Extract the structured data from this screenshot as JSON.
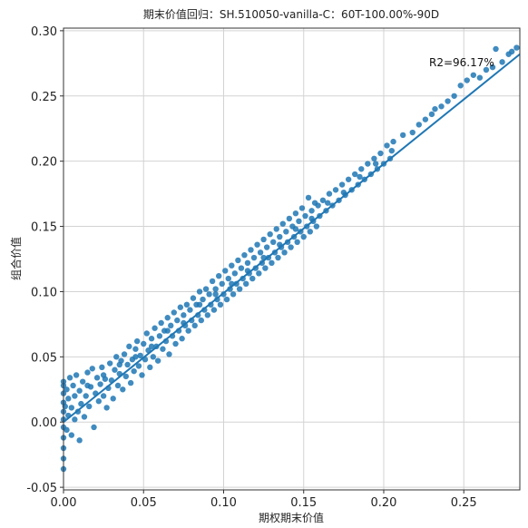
{
  "chart_data": {
    "type": "scatter",
    "title": "期末价值回归：SH.510050-vanilla-C：60T-100.00%-90D",
    "xlabel": "期权期末价值",
    "ylabel": "组合价值",
    "xlim": [
      0.0,
      0.285
    ],
    "ylim": [
      -0.052,
      0.302
    ],
    "x_ticks": [
      "0.00",
      "0.05",
      "0.10",
      "0.15",
      "0.20",
      "0.25"
    ],
    "x_tick_values": [
      0.0,
      0.05,
      0.1,
      0.15,
      0.2,
      0.25
    ],
    "y_ticks": [
      "-0.05",
      "0.00",
      "0.05",
      "0.10",
      "0.15",
      "0.20",
      "0.25",
      "0.30"
    ],
    "y_tick_values": [
      -0.05,
      0.0,
      0.05,
      0.1,
      0.15,
      0.2,
      0.25,
      0.3
    ],
    "grid": true,
    "point_color": "#1f77b4",
    "line_color": "#1f77b4",
    "annotation": "R2=96.17%",
    "regression_line": {
      "x": [
        0.0,
        0.285
      ],
      "y": [
        0.0,
        0.282
      ]
    },
    "points": [
      [
        0.0,
        -0.036
      ],
      [
        0.0,
        -0.028
      ],
      [
        0.0,
        -0.02
      ],
      [
        0.0,
        -0.012
      ],
      [
        0.0,
        -0.004
      ],
      [
        0.0,
        0.002
      ],
      [
        0.0,
        0.008
      ],
      [
        0.0,
        0.015
      ],
      [
        0.0,
        0.022
      ],
      [
        0.0,
        0.028
      ],
      [
        0.0,
        0.031
      ],
      [
        0.001,
        0.012
      ],
      [
        0.002,
        -0.006
      ],
      [
        0.002,
        0.025
      ],
      [
        0.003,
        0.005
      ],
      [
        0.003,
        0.018
      ],
      [
        0.004,
        0.034
      ],
      [
        0.005,
        -0.01
      ],
      [
        0.005,
        0.011
      ],
      [
        0.006,
        0.028
      ],
      [
        0.007,
        0.002
      ],
      [
        0.007,
        0.02
      ],
      [
        0.008,
        0.036
      ],
      [
        0.009,
        0.008
      ],
      [
        0.01,
        -0.014
      ],
      [
        0.01,
        0.024
      ],
      [
        0.011,
        0.014
      ],
      [
        0.012,
        0.031
      ],
      [
        0.013,
        0.004
      ],
      [
        0.014,
        0.02
      ],
      [
        0.015,
        0.038
      ],
      [
        0.016,
        0.012
      ],
      [
        0.017,
        0.027
      ],
      [
        0.018,
        0.041
      ],
      [
        0.019,
        -0.004
      ],
      [
        0.02,
        0.022
      ],
      [
        0.021,
        0.034
      ],
      [
        0.022,
        0.016
      ],
      [
        0.023,
        0.029
      ],
      [
        0.024,
        0.042
      ],
      [
        0.025,
        0.02
      ],
      [
        0.026,
        0.033
      ],
      [
        0.027,
        0.011
      ],
      [
        0.028,
        0.026
      ],
      [
        0.029,
        0.045
      ],
      [
        0.03,
        0.032
      ],
      [
        0.031,
        0.018
      ],
      [
        0.032,
        0.04
      ],
      [
        0.033,
        0.05
      ],
      [
        0.034,
        0.028
      ],
      [
        0.035,
        0.037
      ],
      [
        0.036,
        0.047
      ],
      [
        0.037,
        0.025
      ],
      [
        0.038,
        0.052
      ],
      [
        0.039,
        0.035
      ],
      [
        0.04,
        0.044
      ],
      [
        0.041,
        0.058
      ],
      [
        0.042,
        0.03
      ],
      [
        0.043,
        0.048
      ],
      [
        0.044,
        0.039
      ],
      [
        0.045,
        0.056
      ],
      [
        0.046,
        0.062
      ],
      [
        0.047,
        0.043
      ],
      [
        0.048,
        0.051
      ],
      [
        0.049,
        0.036
      ],
      [
        0.05,
        0.06
      ],
      [
        0.051,
        0.048
      ],
      [
        0.052,
        0.068
      ],
      [
        0.053,
        0.055
      ],
      [
        0.054,
        0.042
      ],
      [
        0.055,
        0.064
      ],
      [
        0.056,
        0.05
      ],
      [
        0.057,
        0.072
      ],
      [
        0.058,
        0.058
      ],
      [
        0.059,
        0.047
      ],
      [
        0.06,
        0.066
      ],
      [
        0.061,
        0.076
      ],
      [
        0.062,
        0.056
      ],
      [
        0.063,
        0.07
      ],
      [
        0.064,
        0.062
      ],
      [
        0.065,
        0.08
      ],
      [
        0.066,
        0.052
      ],
      [
        0.067,
        0.074
      ],
      [
        0.068,
        0.066
      ],
      [
        0.069,
        0.084
      ],
      [
        0.07,
        0.06
      ],
      [
        0.071,
        0.078
      ],
      [
        0.072,
        0.07
      ],
      [
        0.073,
        0.088
      ],
      [
        0.074,
        0.064
      ],
      [
        0.075,
        0.082
      ],
      [
        0.076,
        0.074
      ],
      [
        0.077,
        0.09
      ],
      [
        0.078,
        0.07
      ],
      [
        0.079,
        0.086
      ],
      [
        0.08,
        0.078
      ],
      [
        0.081,
        0.095
      ],
      [
        0.082,
        0.074
      ],
      [
        0.083,
        0.09
      ],
      [
        0.084,
        0.082
      ],
      [
        0.085,
        0.1
      ],
      [
        0.086,
        0.078
      ],
      [
        0.087,
        0.094
      ],
      [
        0.088,
        0.086
      ],
      [
        0.089,
        0.102
      ],
      [
        0.09,
        0.082
      ],
      [
        0.091,
        0.098
      ],
      [
        0.092,
        0.09
      ],
      [
        0.093,
        0.108
      ],
      [
        0.094,
        0.086
      ],
      [
        0.095,
        0.102
      ],
      [
        0.096,
        0.094
      ],
      [
        0.097,
        0.112
      ],
      [
        0.098,
        0.09
      ],
      [
        0.099,
        0.106
      ],
      [
        0.1,
        0.098
      ],
      [
        0.101,
        0.116
      ],
      [
        0.102,
        0.094
      ],
      [
        0.103,
        0.11
      ],
      [
        0.104,
        0.102
      ],
      [
        0.105,
        0.12
      ],
      [
        0.106,
        0.098
      ],
      [
        0.107,
        0.114
      ],
      [
        0.108,
        0.106
      ],
      [
        0.109,
        0.124
      ],
      [
        0.11,
        0.102
      ],
      [
        0.111,
        0.118
      ],
      [
        0.112,
        0.11
      ],
      [
        0.113,
        0.128
      ],
      [
        0.114,
        0.106
      ],
      [
        0.115,
        0.122
      ],
      [
        0.116,
        0.114
      ],
      [
        0.117,
        0.132
      ],
      [
        0.118,
        0.11
      ],
      [
        0.119,
        0.126
      ],
      [
        0.12,
        0.118
      ],
      [
        0.121,
        0.136
      ],
      [
        0.122,
        0.114
      ],
      [
        0.123,
        0.13
      ],
      [
        0.124,
        0.122
      ],
      [
        0.125,
        0.14
      ],
      [
        0.126,
        0.118
      ],
      [
        0.127,
        0.134
      ],
      [
        0.128,
        0.126
      ],
      [
        0.129,
        0.144
      ],
      [
        0.13,
        0.122
      ],
      [
        0.131,
        0.138
      ],
      [
        0.132,
        0.13
      ],
      [
        0.133,
        0.148
      ],
      [
        0.134,
        0.126
      ],
      [
        0.135,
        0.142
      ],
      [
        0.136,
        0.134
      ],
      [
        0.137,
        0.152
      ],
      [
        0.138,
        0.13
      ],
      [
        0.139,
        0.146
      ],
      [
        0.14,
        0.138
      ],
      [
        0.141,
        0.156
      ],
      [
        0.142,
        0.134
      ],
      [
        0.143,
        0.15
      ],
      [
        0.144,
        0.142
      ],
      [
        0.145,
        0.16
      ],
      [
        0.146,
        0.138
      ],
      [
        0.147,
        0.154
      ],
      [
        0.148,
        0.146
      ],
      [
        0.149,
        0.164
      ],
      [
        0.15,
        0.142
      ],
      [
        0.151,
        0.158
      ],
      [
        0.152,
        0.15
      ],
      [
        0.153,
        0.172
      ],
      [
        0.154,
        0.146
      ],
      [
        0.155,
        0.162
      ],
      [
        0.156,
        0.154
      ],
      [
        0.157,
        0.168
      ],
      [
        0.158,
        0.15
      ],
      [
        0.159,
        0.166
      ],
      [
        0.16,
        0.158
      ],
      [
        0.162,
        0.17
      ],
      [
        0.164,
        0.162
      ],
      [
        0.166,
        0.175
      ],
      [
        0.168,
        0.166
      ],
      [
        0.17,
        0.178
      ],
      [
        0.172,
        0.17
      ],
      [
        0.174,
        0.182
      ],
      [
        0.176,
        0.174
      ],
      [
        0.178,
        0.186
      ],
      [
        0.18,
        0.178
      ],
      [
        0.182,
        0.19
      ],
      [
        0.184,
        0.182
      ],
      [
        0.186,
        0.194
      ],
      [
        0.188,
        0.186
      ],
      [
        0.19,
        0.198
      ],
      [
        0.192,
        0.19
      ],
      [
        0.194,
        0.202
      ],
      [
        0.196,
        0.194
      ],
      [
        0.198,
        0.206
      ],
      [
        0.2,
        0.198
      ],
      [
        0.202,
        0.212
      ],
      [
        0.204,
        0.202
      ],
      [
        0.206,
        0.215
      ],
      [
        0.212,
        0.22
      ],
      [
        0.218,
        0.222
      ],
      [
        0.222,
        0.228
      ],
      [
        0.226,
        0.232
      ],
      [
        0.23,
        0.236
      ],
      [
        0.232,
        0.24
      ],
      [
        0.236,
        0.242
      ],
      [
        0.24,
        0.246
      ],
      [
        0.244,
        0.25
      ],
      [
        0.248,
        0.258
      ],
      [
        0.252,
        0.262
      ],
      [
        0.256,
        0.266
      ],
      [
        0.26,
        0.264
      ],
      [
        0.264,
        0.27
      ],
      [
        0.268,
        0.272
      ],
      [
        0.27,
        0.286
      ],
      [
        0.274,
        0.276
      ],
      [
        0.278,
        0.282
      ],
      [
        0.28,
        0.284
      ],
      [
        0.283,
        0.287
      ],
      [
        0.015,
        0.028
      ],
      [
        0.025,
        0.036
      ],
      [
        0.035,
        0.044
      ],
      [
        0.045,
        0.05
      ],
      [
        0.055,
        0.058
      ],
      [
        0.065,
        0.07
      ],
      [
        0.075,
        0.076
      ],
      [
        0.085,
        0.09
      ],
      [
        0.095,
        0.098
      ],
      [
        0.105,
        0.106
      ],
      [
        0.115,
        0.116
      ],
      [
        0.125,
        0.126
      ],
      [
        0.135,
        0.136
      ],
      [
        0.145,
        0.148
      ],
      [
        0.155,
        0.156
      ],
      [
        0.165,
        0.168
      ],
      [
        0.175,
        0.176
      ],
      [
        0.185,
        0.188
      ],
      [
        0.195,
        0.198
      ],
      [
        0.205,
        0.208
      ]
    ]
  }
}
